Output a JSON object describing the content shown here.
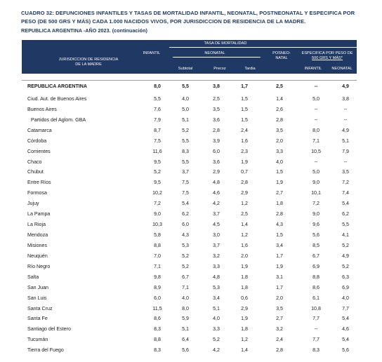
{
  "title": {
    "line1": "CUADRO 32: DEFUNCIONES INFANTILES Y TASAS DE MORTALIDAD INFANTIL, NEONATAL, POSTNEONATAL Y ESPECIFICA POR",
    "line2": "PESO (DE 500 GRS Y MÁS) CADA 1.000 NACIDOS VIVOS, POR JURISDICCION DE RESIDENCIA DE LA MADRE.",
    "line3": "REPUBLICA ARGENTINA -AÑO 2023. (continuación)"
  },
  "header": {
    "tasa": "TASA DE MORTALIDAD",
    "jurisdiccion_1": "JURISDICCION DE RESIDENCIA",
    "jurisdiccion_2": "DE LA MADRE",
    "infantil": "INFANTIL",
    "neonatal": "NEONATAL",
    "posneo_1": "POSNEO-",
    "posneo_2": "NATAL",
    "especifica_1": "ESPECIFICA POR PESO DE",
    "especifica_2": "500 GRS Y MÁS*",
    "subtotal": "Subtotal",
    "precoz": "Precoz",
    "tardia": "Tardia",
    "esp_infantil": "INFANTIL",
    "esp_neonatal": "NEONATAL"
  },
  "rows": [
    {
      "name": "REPUBLICA ARGENTINA",
      "infantil": "8,0",
      "subtotal": "5,5",
      "precoz": "3,8",
      "tardia": "1,7",
      "posneonatal": "2,5",
      "esp_infantil": "--",
      "esp_neonatal": "4,9",
      "bold": true
    },
    {
      "name": "Ciud. Aut. de Buenos Aires",
      "infantil": "5,5",
      "subtotal": "4,0",
      "precoz": "2,5",
      "tardia": "1,5",
      "posneonatal": "1,4",
      "esp_infantil": "5,0",
      "esp_neonatal": "3,8"
    },
    {
      "name": "Buenos Aires",
      "infantil": "7,6",
      "subtotal": "5,0",
      "precoz": "3,5",
      "tardia": "1,5",
      "posneonatal": "2,6",
      "esp_infantil": "--",
      "esp_neonatal": "--"
    },
    {
      "name": "Partidos del Aglom. GBA",
      "infantil": "7,9",
      "subtotal": "5,1",
      "precoz": "3,6",
      "tardia": "1,5",
      "posneonatal": "2,8",
      "esp_infantil": "--",
      "esp_neonatal": "--",
      "indent": true
    },
    {
      "name": "Catamarca",
      "infantil": "8,7",
      "subtotal": "5,2",
      "precoz": "2,8",
      "tardia": "2,4",
      "posneonatal": "3,5",
      "esp_infantil": "8,0",
      "esp_neonatal": "4,9"
    },
    {
      "name": "Córdoba",
      "infantil": "7,5",
      "subtotal": "5,5",
      "precoz": "3,9",
      "tardia": "1,6",
      "posneonatal": "2,0",
      "esp_infantil": "7,1",
      "esp_neonatal": "5,1"
    },
    {
      "name": "Corrientes",
      "infantil": "11,6",
      "subtotal": "8,3",
      "precoz": "6,0",
      "tardia": "2,3",
      "posneonatal": "3,3",
      "esp_infantil": "10,5",
      "esp_neonatal": "7,9"
    },
    {
      "name": "Chaco",
      "infantil": "9,5",
      "subtotal": "5,5",
      "precoz": "3,6",
      "tardia": "1,9",
      "posneonatal": "4,0",
      "esp_infantil": "--",
      "esp_neonatal": "--"
    },
    {
      "name": "Chubut",
      "infantil": "5,2",
      "subtotal": "3,7",
      "precoz": "2,9",
      "tardia": "0,7",
      "posneonatal": "1,5",
      "esp_infantil": "5,0",
      "esp_neonatal": "3,5"
    },
    {
      "name": "Entre Ríos",
      "infantil": "9,5",
      "subtotal": "7,5",
      "precoz": "4,8",
      "tardia": "2,8",
      "posneonatal": "1,9",
      "esp_infantil": "9,0",
      "esp_neonatal": "7,2"
    },
    {
      "name": "Formosa",
      "infantil": "10,2",
      "subtotal": "7,5",
      "precoz": "4,6",
      "tardia": "2,9",
      "posneonatal": "2,7",
      "esp_infantil": "10,1",
      "esp_neonatal": "7,4"
    },
    {
      "name": "Jujuy",
      "infantil": "7,2",
      "subtotal": "5,4",
      "precoz": "4,2",
      "tardia": "1,2",
      "posneonatal": "1,8",
      "esp_infantil": "7,2",
      "esp_neonatal": "5,4"
    },
    {
      "name": "La Pampa",
      "infantil": "9,0",
      "subtotal": "6,2",
      "precoz": "3,7",
      "tardia": "2,5",
      "posneonatal": "2,8",
      "esp_infantil": "9,0",
      "esp_neonatal": "6,2"
    },
    {
      "name": "La Rioja",
      "infantil": "10,3",
      "subtotal": "6,0",
      "precoz": "4,5",
      "tardia": "1,4",
      "posneonatal": "4,3",
      "esp_infantil": "9,6",
      "esp_neonatal": "5,5"
    },
    {
      "name": "Mendoza",
      "infantil": "5,8",
      "subtotal": "4,3",
      "precoz": "3,0",
      "tardia": "1,2",
      "posneonatal": "1,5",
      "esp_infantil": "5,6",
      "esp_neonatal": "4,1"
    },
    {
      "name": "Misiones",
      "infantil": "8,8",
      "subtotal": "5,3",
      "precoz": "3,7",
      "tardia": "1,6",
      "posneonatal": "3,4",
      "esp_infantil": "8,5",
      "esp_neonatal": "5,2"
    },
    {
      "name": "Neuquén",
      "infantil": "7,0",
      "subtotal": "5,2",
      "precoz": "3,2",
      "tardia": "2,0",
      "posneonatal": "1,7",
      "esp_infantil": "6,7",
      "esp_neonatal": "4,9"
    },
    {
      "name": "Río Negro",
      "infantil": "7,1",
      "subtotal": "5,2",
      "precoz": "3,3",
      "tardia": "1,9",
      "posneonatal": "1,9",
      "esp_infantil": "6,9",
      "esp_neonatal": "5,2"
    },
    {
      "name": "Salta",
      "infantil": "9,8",
      "subtotal": "6,7",
      "precoz": "4,8",
      "tardia": "1,8",
      "posneonatal": "3,1",
      "esp_infantil": "8,8",
      "esp_neonatal": "6,3"
    },
    {
      "name": "San Juan",
      "infantil": "8,9",
      "subtotal": "7,1",
      "precoz": "5,3",
      "tardia": "1,8",
      "posneonatal": "1,7",
      "esp_infantil": "8,6",
      "esp_neonatal": "6,9"
    },
    {
      "name": "San Luis",
      "infantil": "6,0",
      "subtotal": "4,0",
      "precoz": "3,4",
      "tardia": "0,6",
      "posneonatal": "2,0",
      "esp_infantil": "6,1",
      "esp_neonatal": "4,0"
    },
    {
      "name": "Santa Cruz",
      "infantil": "11,5",
      "subtotal": "8,0",
      "precoz": "5,1",
      "tardia": "2,9",
      "posneonatal": "3,5",
      "esp_infantil": "10,8",
      "esp_neonatal": "7,7"
    },
    {
      "name": "Santa Fe",
      "infantil": "8,6",
      "subtotal": "5,9",
      "precoz": "4,0",
      "tardia": "1,9",
      "posneonatal": "2,7",
      "esp_infantil": "7,7",
      "esp_neonatal": "5,4"
    },
    {
      "name": "Santiago del Estero",
      "infantil": "8,3",
      "subtotal": "5,1",
      "precoz": "3,3",
      "tardia": "1,8",
      "posneonatal": "3,2",
      "esp_infantil": "--",
      "esp_neonatal": "4,6"
    },
    {
      "name": "Tucumán",
      "infantil": "8,8",
      "subtotal": "6,4",
      "precoz": "5,2",
      "tardia": "1,2",
      "posneonatal": "2,4",
      "esp_infantil": "7,7",
      "esp_neonatal": "5,4"
    },
    {
      "name": "Tierra del Fuego",
      "infantil": "8,3",
      "subtotal": "5,6",
      "precoz": "4,2",
      "tardia": "1,4",
      "posneonatal": "2,8",
      "esp_infantil": "8,3",
      "esp_neonatal": "5,6"
    }
  ]
}
